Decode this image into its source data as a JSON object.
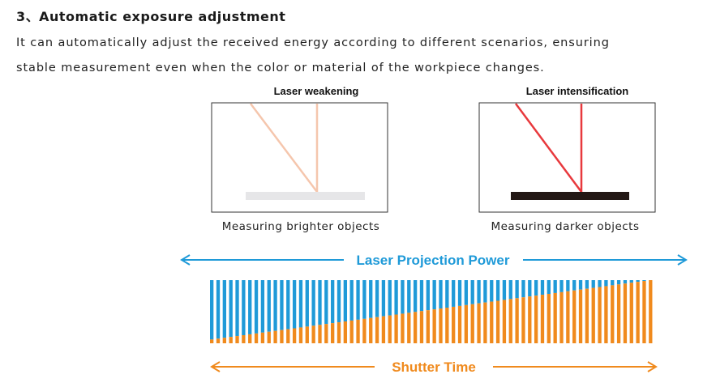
{
  "section": {
    "title": "3、Automatic exposure adjustment",
    "paragraph": [
      "It can automatically adjust the received energy according to different scenarios, ensuring",
      "stable measurement even when the color or material of the workpiece changes."
    ]
  },
  "panels": [
    {
      "label": "Laser weakening",
      "caption": "Measuring brighter objects"
    },
    {
      "label": "Laser intensification",
      "caption": "Measuring darker objects"
    }
  ],
  "arrows": {
    "top": "Laser Projection Power",
    "bottom": "Shutter Time"
  }
}
